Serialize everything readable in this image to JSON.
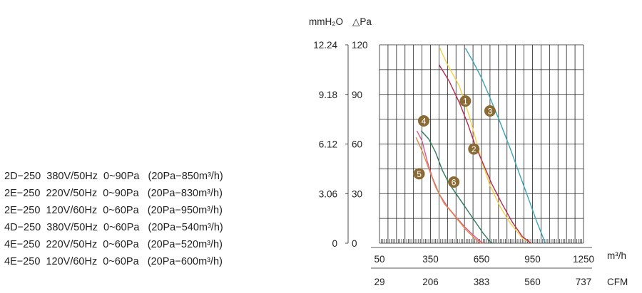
{
  "spec_lines": [
    "2D−250  380V/50Hz  0~90Pa   (20Pa−850m³/h)",
    "2E−250  220V/50Hz  0~90Pa   (20Pa−830m³/h)",
    "2E−250  120V/60Hz  0~60Pa   (20Pa−950m³/h)",
    "4D−250  380V/50Hz  0~60Pa   (20Pa−540m³/h)",
    "4E−250  220V/50Hz  0~60Pa   (20Pa−520m³/h)",
    "4E−250  120V/60Hz  0~60Pa   (20Pa−600m³/h)"
  ],
  "chart_data": {
    "type": "line",
    "title": "",
    "mmh2o_label": "mmH₂O",
    "pa_label": "△Pa",
    "xunit_primary": "m³/h",
    "xunit_secondary": "CFM",
    "x_ticks": [
      "50",
      "350",
      "650",
      "950",
      "1250"
    ],
    "cfm_ticks": [
      "29",
      "206",
      "383",
      "560",
      "737"
    ],
    "y_ticks_pa": [
      "0",
      "30",
      "60",
      "90",
      "120"
    ],
    "y_ticks_mmh2o": [
      "0",
      "3.06",
      "6.12",
      "9.18",
      "12.24"
    ],
    "xlim": [
      50,
      1250
    ],
    "ylim": [
      0,
      120
    ],
    "grid": true,
    "series": [
      {
        "name": "1",
        "color": "#f3d34a",
        "label_at": [
          555,
          86
        ],
        "points": [
          [
            405,
            118
          ],
          [
            450,
            108
          ],
          [
            520,
            95
          ],
          [
            575,
            78
          ],
          [
            610,
            65
          ],
          [
            650,
            50
          ],
          [
            700,
            35
          ],
          [
            760,
            22
          ],
          [
            820,
            12
          ],
          [
            890,
            3
          ],
          [
            945,
            0
          ]
        ]
      },
      {
        "name": "2",
        "color": "#b52a4f",
        "label_at": [
          605,
          57
        ],
        "points": [
          [
            400,
            108
          ],
          [
            460,
            98
          ],
          [
            520,
            85
          ],
          [
            570,
            72
          ],
          [
            610,
            60
          ],
          [
            660,
            48
          ],
          [
            710,
            36
          ],
          [
            770,
            24
          ],
          [
            830,
            13
          ],
          [
            890,
            4
          ],
          [
            942,
            0
          ]
        ]
      },
      {
        "name": "3",
        "color": "#3aa5b4",
        "label_at": [
          700,
          80
        ],
        "points": [
          [
            555,
            118
          ],
          [
            600,
            110
          ],
          [
            650,
            100
          ],
          [
            700,
            88
          ],
          [
            760,
            73
          ],
          [
            820,
            57
          ],
          [
            880,
            40
          ],
          [
            930,
            26
          ],
          [
            975,
            13
          ],
          [
            1010,
            4
          ],
          [
            1025,
            0
          ]
        ]
      },
      {
        "name": "4",
        "color": "#2f7a5e",
        "label_at": [
          310,
          74
        ],
        "points": [
          [
            295,
            68
          ],
          [
            340,
            63
          ],
          [
            380,
            55
          ],
          [
            420,
            44
          ],
          [
            460,
            36
          ],
          [
            500,
            30
          ],
          [
            540,
            24
          ],
          [
            580,
            18
          ],
          [
            620,
            12
          ],
          [
            660,
            6
          ],
          [
            700,
            1
          ],
          [
            715,
            0
          ]
        ]
      },
      {
        "name": "5",
        "color": "#d85a8e",
        "label_at": [
          283,
          42
        ],
        "points": [
          [
            270,
            68
          ],
          [
            300,
            62
          ],
          [
            330,
            50
          ],
          [
            360,
            40
          ],
          [
            400,
            30
          ],
          [
            450,
            22
          ],
          [
            500,
            16
          ],
          [
            550,
            10
          ],
          [
            600,
            5
          ],
          [
            645,
            1
          ],
          [
            660,
            0
          ]
        ]
      },
      {
        "name": "6",
        "color": "#e28b4d",
        "label_at": [
          487,
          37
        ],
        "points": [
          [
            265,
            64
          ],
          [
            300,
            56
          ],
          [
            340,
            45
          ],
          [
            380,
            34
          ],
          [
            430,
            24
          ],
          [
            480,
            18
          ],
          [
            520,
            13
          ],
          [
            560,
            8
          ],
          [
            600,
            4
          ],
          [
            630,
            1
          ],
          [
            648,
            0
          ]
        ]
      }
    ]
  }
}
